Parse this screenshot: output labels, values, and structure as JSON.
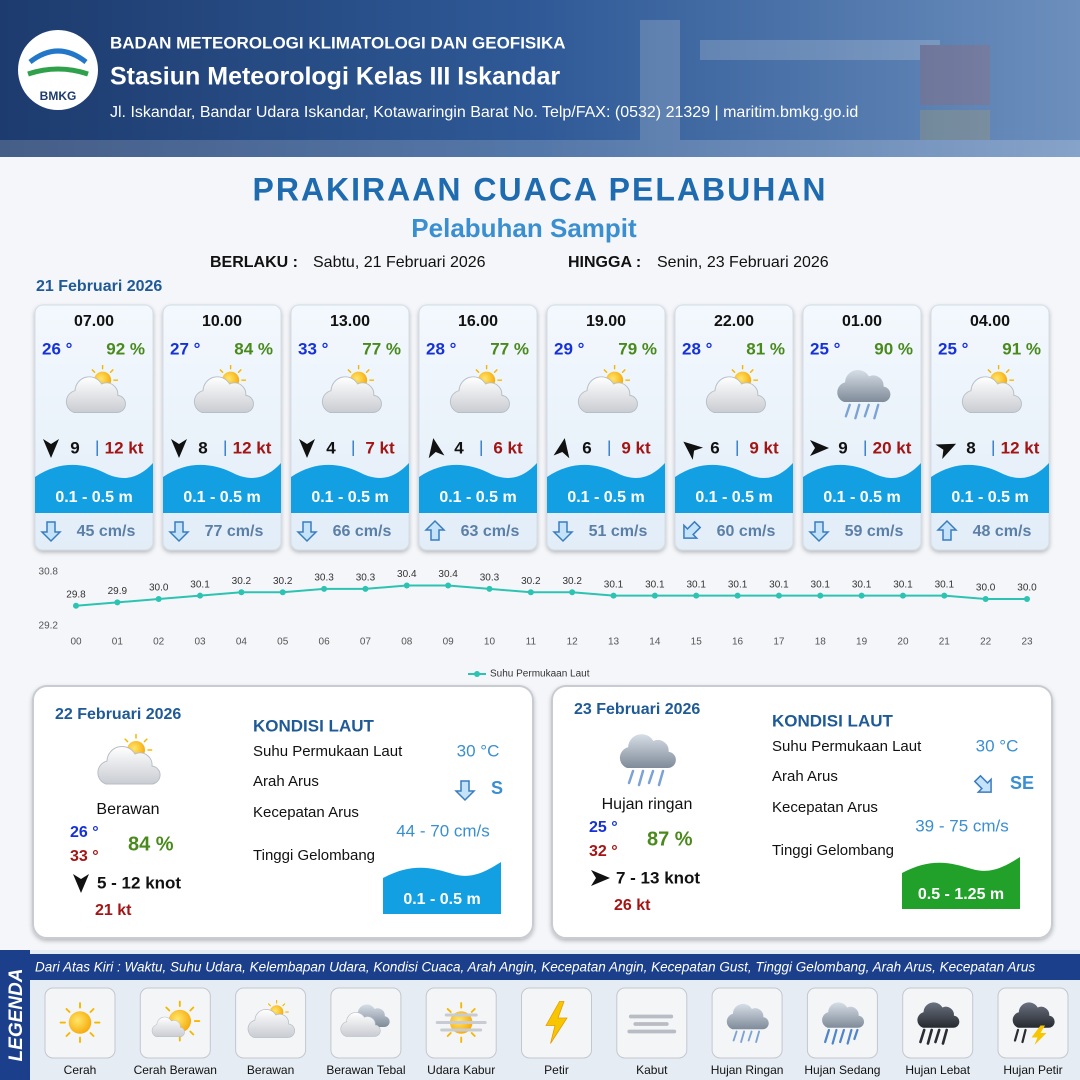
{
  "header": {
    "logo": "BMKG",
    "organization": "BADAN METEOROLOGI KLIMATOLOGI DAN GEOFISIKA",
    "station": "Stasiun Meteorologi Kelas III Iskandar",
    "address": "Jl. Iskandar, Bandar Udara Iskandar, Kotawaringin Barat No. Telp/FAX: (0532) 21329 | maritim.bmkg.go.id"
  },
  "title": "PRAKIRAAN CUACA PELABUHAN",
  "subtitle": "Pelabuhan Sampit",
  "validity": {
    "from_label": "BERLAKU :",
    "from": "Sabtu, 21 Februari 2026",
    "to_label": "HINGGA :",
    "to": "Senin, 23 Februari 2026"
  },
  "day1": {
    "date": "21 Februari 2026",
    "cards": [
      {
        "time": "07.00",
        "temp": "26 °",
        "humidity": "92 %",
        "wind": "9",
        "gust": "12 kt",
        "wave": "0.1 - 0.5 m",
        "current": "45 cm/s"
      },
      {
        "time": "10.00",
        "temp": "27 °",
        "humidity": "84 %",
        "wind": "8",
        "gust": "12 kt",
        "wave": "0.1 - 0.5 m",
        "current": "77 cm/s"
      },
      {
        "time": "13.00",
        "temp": "33 °",
        "humidity": "77 %",
        "wind": "4",
        "gust": "7 kt",
        "wave": "0.1 - 0.5 m",
        "current": "66 cm/s"
      },
      {
        "time": "16.00",
        "temp": "28 °",
        "humidity": "77 %",
        "wind": "4",
        "gust": "6 kt",
        "wave": "0.1 - 0.5 m",
        "current": "63 cm/s"
      },
      {
        "time": "19.00",
        "temp": "29 °",
        "humidity": "79 %",
        "wind": "6",
        "gust": "9 kt",
        "wave": "0.1 - 0.5 m",
        "current": "51 cm/s"
      },
      {
        "time": "22.00",
        "temp": "28 °",
        "humidity": "81 %",
        "wind": "6",
        "gust": "9 kt",
        "wave": "0.1 - 0.5 m",
        "current": "60 cm/s"
      },
      {
        "time": "01.00",
        "temp": "25 °",
        "humidity": "90 %",
        "wind": "9",
        "gust": "20 kt",
        "wave": "0.1 - 0.5 m",
        "current": "59 cm/s"
      },
      {
        "time": "04.00",
        "temp": "25 °",
        "humidity": "91 %",
        "wind": "8",
        "gust": "12 kt",
        "wave": "0.1 - 0.5 m",
        "current": "48 cm/s"
      }
    ]
  },
  "chart_data": {
    "type": "line",
    "categories": [
      "00",
      "01",
      "02",
      "03",
      "04",
      "05",
      "06",
      "07",
      "08",
      "09",
      "10",
      "11",
      "12",
      "13",
      "14",
      "15",
      "16",
      "17",
      "18",
      "19",
      "20",
      "21",
      "22",
      "23"
    ],
    "series": [
      {
        "name": "Suhu Permukaan Laut",
        "color": "#2cc3b3",
        "values": [
          29.8,
          29.9,
          30.0,
          30.1,
          30.2,
          30.2,
          30.3,
          30.3,
          30.4,
          30.4,
          30.3,
          30.2,
          30.2,
          30.1,
          30.1,
          30.1,
          30.1,
          30.1,
          30.1,
          30.1,
          30.1,
          30.1,
          30.0,
          30.0
        ],
        "value_labels": [
          "29.8",
          "29.9",
          "30.0",
          "30.1",
          "30.2",
          "30.2",
          "30.3",
          "30.3",
          "30.4",
          "30.4",
          "30.3",
          "30.2",
          "30.2",
          "30.1",
          "30.1",
          "30.1",
          "30.1",
          "30.1",
          "30.1",
          "30.1",
          "30.1",
          "30.1",
          "30.0",
          "30.0"
        ]
      }
    ],
    "ylim": [
      29.2,
      30.8
    ],
    "yticks": [
      29.2,
      30.8
    ],
    "grid": false,
    "legend": "bottom"
  },
  "days": [
    {
      "date": "22 Februari 2026",
      "weather": "Berawan",
      "temp_min": "26 °",
      "temp_max": "33 °",
      "humidity": "84 %",
      "wind": "5  - 12 knot",
      "gust": "21 kt",
      "sea": {
        "title": "KONDISI LAUT",
        "sst_label": "Suhu Permukaan Laut",
        "sst": "30 °C",
        "current_dir_label": "Arah Arus",
        "current_dir": "S",
        "current_speed_label": "Kecepatan Arus",
        "current_speed": "44  - 70 cm/s",
        "wave_label": "Tinggi Gelombang",
        "wave": "0.1 - 0.5 m"
      }
    },
    {
      "date": "23 Februari 2026",
      "weather": "Hujan ringan",
      "temp_min": "25 °",
      "temp_max": "32 °",
      "humidity": "87 %",
      "wind": "7  - 13 knot",
      "gust": "26 kt",
      "sea": {
        "title": "KONDISI LAUT",
        "sst_label": "Suhu Permukaan Laut",
        "sst": "30 °C",
        "current_dir_label": "Arah Arus",
        "current_dir": "SE",
        "current_speed_label": "Kecepatan Arus",
        "current_speed": "39  - 75 cm/s",
        "wave_label": "Tinggi Gelombang",
        "wave": "0.5 - 1.25 m"
      }
    }
  ],
  "legend": {
    "title": "LEGENDA",
    "description": "Dari Atas Kiri : Waktu, Suhu Udara, Kelembapan Udara, Kondisi Cuaca, Arah Angin, Kecepatan Angin, Kecepatan Gust, Tinggi Gelombang, Arah Arus, Kecepatan Arus",
    "items": [
      "Cerah",
      "Cerah Berawan",
      "Berawan",
      "Berawan Tebal",
      "Udara Kabur",
      "Petir",
      "Kabut",
      "Hujan Ringan",
      "Hujan Sedang",
      "Hujan Lebat",
      "Hujan Petir"
    ]
  }
}
